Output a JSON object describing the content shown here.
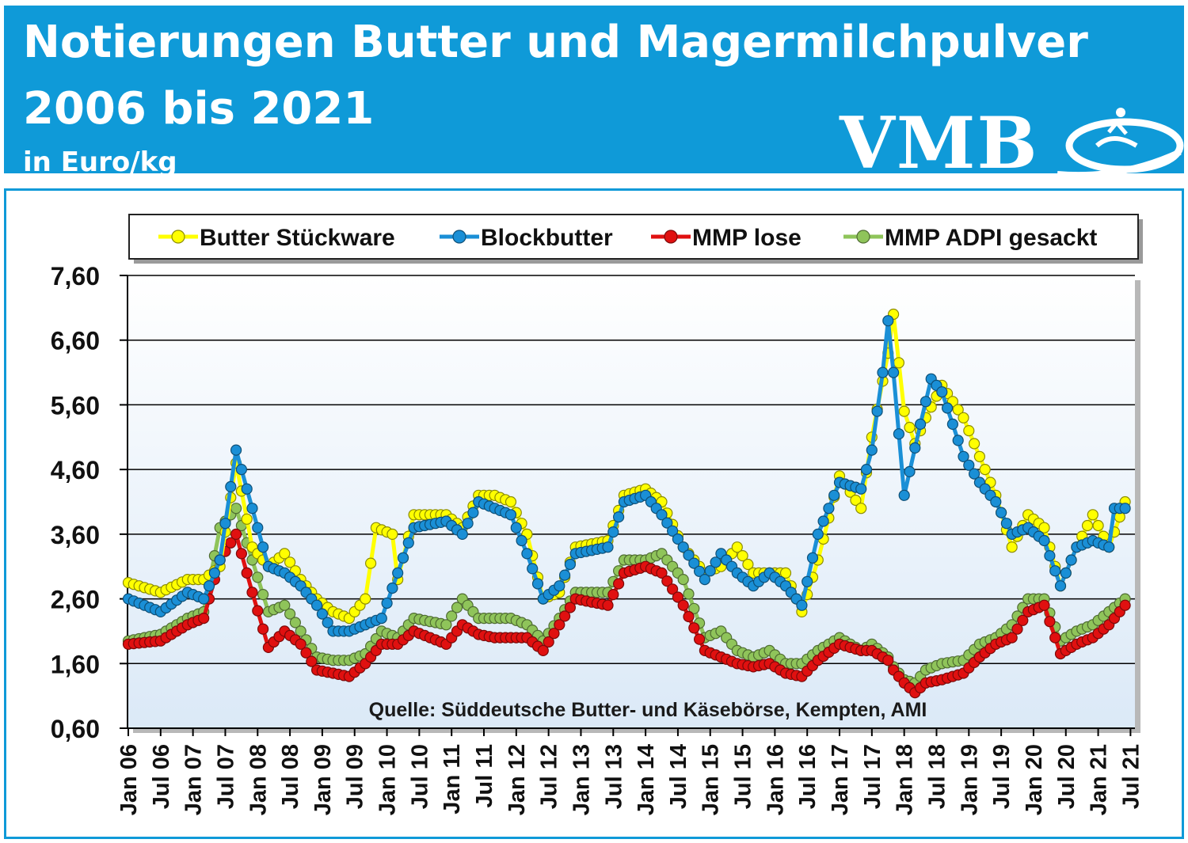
{
  "header": {
    "title_line1": "Notierungen Butter und Magermilchpulver",
    "title_line2": "2006 bis 2021",
    "unit": "in Euro/kg",
    "logo_text": "VMB",
    "colors": {
      "header_bg": "#0f9ad8",
      "text": "#ffffff"
    }
  },
  "chart_data": {
    "type": "line",
    "title": "Notierungen Butter und Magermilchpulver 2006 bis 2021",
    "ylabel": "in Euro/kg",
    "ylim": [
      0.6,
      7.6
    ],
    "yticks": [
      "0,60",
      "1,60",
      "2,60",
      "3,60",
      "4,60",
      "5,60",
      "6,60",
      "7,60"
    ],
    "yticks_values": [
      0.6,
      1.6,
      2.6,
      3.6,
      4.6,
      5.6,
      6.6,
      7.6
    ],
    "x_tick_labels": [
      "Jan 06",
      "Jul 06",
      "Jan 07",
      "Jul 07",
      "Jan 08",
      "Jul 08",
      "Jan 09",
      "Jul 09",
      "Jan 10",
      "Jul 10",
      "Jan 11",
      "Jul 11",
      "Jan 12",
      "Jul 12",
      "Jan 13",
      "Jul 13",
      "Jan 14",
      "Jul 14",
      "Jan 15",
      "Jul 15",
      "Jan 16",
      "Jul 16",
      "Jan 17",
      "Jul 17",
      "Jan 18",
      "Jul 18",
      "Jan 19",
      "Jul 19",
      "Jan 20",
      "Jul 20",
      "Jan 21",
      "Jul 21"
    ],
    "source": "Quelle: Süddeutsche Butter- und Käsebörse, Kempten, AMI",
    "grid": true,
    "legend_position": "top",
    "series": [
      {
        "name": "Butter Stückware",
        "color": "#ffff00",
        "anchors": [
          [
            "2006-01",
            2.85
          ],
          [
            "2006-07",
            2.7
          ],
          [
            "2006-12",
            2.9
          ],
          [
            "2007-03",
            2.9
          ],
          [
            "2007-06",
            3.1
          ],
          [
            "2007-09",
            4.7
          ],
          [
            "2007-12",
            3.4
          ],
          [
            "2008-03",
            3.1
          ],
          [
            "2008-06",
            3.3
          ],
          [
            "2008-09",
            2.9
          ],
          [
            "2008-12",
            2.6
          ],
          [
            "2009-03",
            2.4
          ],
          [
            "2009-06",
            2.3
          ],
          [
            "2009-09",
            2.6
          ],
          [
            "2009-11",
            3.7
          ],
          [
            "2010-02",
            3.6
          ],
          [
            "2010-03",
            2.9
          ],
          [
            "2010-06",
            3.9
          ],
          [
            "2010-12",
            3.9
          ],
          [
            "2011-03",
            3.7
          ],
          [
            "2011-06",
            4.2
          ],
          [
            "2011-09",
            4.2
          ],
          [
            "2011-12",
            4.1
          ],
          [
            "2012-03",
            3.6
          ],
          [
            "2012-06",
            2.6
          ],
          [
            "2012-09",
            2.7
          ],
          [
            "2012-12",
            3.4
          ],
          [
            "2013-06",
            3.5
          ],
          [
            "2013-09",
            4.2
          ],
          [
            "2014-01",
            4.3
          ],
          [
            "2014-04",
            4.1
          ],
          [
            "2014-08",
            3.4
          ],
          [
            "2014-12",
            3.0
          ],
          [
            "2015-03",
            3.1
          ],
          [
            "2015-06",
            3.4
          ],
          [
            "2015-09",
            3.0
          ],
          [
            "2015-12",
            3.0
          ],
          [
            "2016-03",
            3.0
          ],
          [
            "2016-06",
            2.4
          ],
          [
            "2016-09",
            3.2
          ],
          [
            "2017-01",
            4.5
          ],
          [
            "2017-05",
            4.0
          ],
          [
            "2017-07",
            5.1
          ],
          [
            "2017-10",
            6.4
          ],
          [
            "2017-11",
            7.0
          ],
          [
            "2018-01",
            5.5
          ],
          [
            "2018-03",
            5.0
          ],
          [
            "2018-05",
            5.4
          ],
          [
            "2018-08",
            5.9
          ],
          [
            "2018-12",
            5.4
          ],
          [
            "2019-03",
            4.8
          ],
          [
            "2019-06",
            4.2
          ],
          [
            "2019-09",
            3.4
          ],
          [
            "2019-12",
            3.9
          ],
          [
            "2020-03",
            3.7
          ],
          [
            "2020-06",
            2.8
          ],
          [
            "2020-09",
            3.4
          ],
          [
            "2020-12",
            3.9
          ],
          [
            "2021-03",
            3.4
          ],
          [
            "2021-06",
            4.1
          ]
        ]
      },
      {
        "name": "Blockbutter",
        "color": "#1a8fd6",
        "anchors": [
          [
            "2006-01",
            2.6
          ],
          [
            "2006-07",
            2.4
          ],
          [
            "2006-12",
            2.7
          ],
          [
            "2007-03",
            2.6
          ],
          [
            "2007-06",
            3.2
          ],
          [
            "2007-09",
            4.9
          ],
          [
            "2007-12",
            4.0
          ],
          [
            "2008-03",
            3.1
          ],
          [
            "2008-06",
            3.0
          ],
          [
            "2008-09",
            2.8
          ],
          [
            "2008-12",
            2.5
          ],
          [
            "2009-03",
            2.1
          ],
          [
            "2009-06",
            2.1
          ],
          [
            "2009-09",
            2.2
          ],
          [
            "2009-12",
            2.3
          ],
          [
            "2010-03",
            3.0
          ],
          [
            "2010-06",
            3.7
          ],
          [
            "2010-12",
            3.8
          ],
          [
            "2011-03",
            3.6
          ],
          [
            "2011-06",
            4.1
          ],
          [
            "2011-09",
            4.0
          ],
          [
            "2011-12",
            3.9
          ],
          [
            "2012-03",
            3.3
          ],
          [
            "2012-06",
            2.6
          ],
          [
            "2012-09",
            2.8
          ],
          [
            "2012-12",
            3.3
          ],
          [
            "2013-06",
            3.4
          ],
          [
            "2013-09",
            4.1
          ],
          [
            "2014-01",
            4.2
          ],
          [
            "2014-04",
            3.9
          ],
          [
            "2014-08",
            3.4
          ],
          [
            "2014-12",
            2.9
          ],
          [
            "2015-03",
            3.3
          ],
          [
            "2015-06",
            3.0
          ],
          [
            "2015-09",
            2.8
          ],
          [
            "2015-12",
            3.0
          ],
          [
            "2016-03",
            2.8
          ],
          [
            "2016-06",
            2.5
          ],
          [
            "2016-09",
            3.6
          ],
          [
            "2017-01",
            4.4
          ],
          [
            "2017-05",
            4.3
          ],
          [
            "2017-07",
            4.9
          ],
          [
            "2017-09",
            6.1
          ],
          [
            "2017-10",
            6.9
          ],
          [
            "2017-11",
            6.1
          ],
          [
            "2018-01",
            4.2
          ],
          [
            "2018-04",
            5.3
          ],
          [
            "2018-06",
            6.0
          ],
          [
            "2018-08",
            5.8
          ],
          [
            "2018-12",
            4.8
          ],
          [
            "2019-03",
            4.4
          ],
          [
            "2019-06",
            4.1
          ],
          [
            "2019-09",
            3.6
          ],
          [
            "2019-12",
            3.7
          ],
          [
            "2020-03",
            3.5
          ],
          [
            "2020-06",
            2.8
          ],
          [
            "2020-09",
            3.4
          ],
          [
            "2020-12",
            3.5
          ],
          [
            "2021-03",
            3.4
          ],
          [
            "2021-04",
            4.0
          ],
          [
            "2021-06",
            4.0
          ]
        ]
      },
      {
        "name": "MMP lose",
        "color": "#e01010",
        "anchors": [
          [
            "2006-01",
            1.9
          ],
          [
            "2006-07",
            1.95
          ],
          [
            "2006-12",
            2.2
          ],
          [
            "2007-03",
            2.3
          ],
          [
            "2007-06",
            3.2
          ],
          [
            "2007-09",
            3.6
          ],
          [
            "2007-12",
            2.7
          ],
          [
            "2008-03",
            1.85
          ],
          [
            "2008-06",
            2.1
          ],
          [
            "2008-09",
            1.9
          ],
          [
            "2008-12",
            1.5
          ],
          [
            "2009-03",
            1.45
          ],
          [
            "2009-06",
            1.4
          ],
          [
            "2009-09",
            1.6
          ],
          [
            "2009-12",
            1.9
          ],
          [
            "2010-03",
            1.9
          ],
          [
            "2010-06",
            2.1
          ],
          [
            "2010-12",
            1.9
          ],
          [
            "2011-03",
            2.2
          ],
          [
            "2011-06",
            2.05
          ],
          [
            "2011-09",
            2.0
          ],
          [
            "2011-12",
            2.0
          ],
          [
            "2012-03",
            2.0
          ],
          [
            "2012-06",
            1.8
          ],
          [
            "2012-09",
            2.2
          ],
          [
            "2012-12",
            2.6
          ],
          [
            "2013-06",
            2.5
          ],
          [
            "2013-09",
            3.0
          ],
          [
            "2014-01",
            3.1
          ],
          [
            "2014-04",
            3.0
          ],
          [
            "2014-08",
            2.5
          ],
          [
            "2014-12",
            1.8
          ],
          [
            "2015-03",
            1.7
          ],
          [
            "2015-06",
            1.6
          ],
          [
            "2015-09",
            1.55
          ],
          [
            "2015-12",
            1.6
          ],
          [
            "2016-03",
            1.45
          ],
          [
            "2016-06",
            1.4
          ],
          [
            "2016-09",
            1.65
          ],
          [
            "2017-01",
            1.9
          ],
          [
            "2017-05",
            1.8
          ],
          [
            "2017-07",
            1.8
          ],
          [
            "2017-10",
            1.65
          ],
          [
            "2017-11",
            1.5
          ],
          [
            "2018-01",
            1.3
          ],
          [
            "2018-03",
            1.15
          ],
          [
            "2018-05",
            1.3
          ],
          [
            "2018-08",
            1.35
          ],
          [
            "2018-12",
            1.45
          ],
          [
            "2019-03",
            1.7
          ],
          [
            "2019-06",
            1.9
          ],
          [
            "2019-09",
            2.0
          ],
          [
            "2019-12",
            2.4
          ],
          [
            "2020-03",
            2.5
          ],
          [
            "2020-06",
            1.75
          ],
          [
            "2020-09",
            1.9
          ],
          [
            "2020-12",
            2.0
          ],
          [
            "2021-03",
            2.2
          ],
          [
            "2021-06",
            2.5
          ]
        ]
      },
      {
        "name": "MMP ADPI gesackt",
        "color": "#8fc45a",
        "anchors": [
          [
            "2006-01",
            1.95
          ],
          [
            "2006-07",
            2.05
          ],
          [
            "2006-12",
            2.3
          ],
          [
            "2007-03",
            2.4
          ],
          [
            "2007-06",
            3.7
          ],
          [
            "2007-09",
            4.0
          ],
          [
            "2007-12",
            3.2
          ],
          [
            "2008-03",
            2.4
          ],
          [
            "2008-06",
            2.5
          ],
          [
            "2008-09",
            2.1
          ],
          [
            "2008-12",
            1.7
          ],
          [
            "2009-03",
            1.65
          ],
          [
            "2009-06",
            1.65
          ],
          [
            "2009-09",
            1.75
          ],
          [
            "2009-12",
            2.1
          ],
          [
            "2010-03",
            2.0
          ],
          [
            "2010-06",
            2.3
          ],
          [
            "2010-12",
            2.2
          ],
          [
            "2011-03",
            2.6
          ],
          [
            "2011-06",
            2.3
          ],
          [
            "2011-09",
            2.3
          ],
          [
            "2011-12",
            2.3
          ],
          [
            "2012-03",
            2.2
          ],
          [
            "2012-06",
            1.95
          ],
          [
            "2012-09",
            2.3
          ],
          [
            "2012-12",
            2.7
          ],
          [
            "2013-06",
            2.7
          ],
          [
            "2013-09",
            3.2
          ],
          [
            "2014-01",
            3.2
          ],
          [
            "2014-04",
            3.3
          ],
          [
            "2014-08",
            2.9
          ],
          [
            "2014-12",
            2.0
          ],
          [
            "2015-03",
            2.1
          ],
          [
            "2015-06",
            1.8
          ],
          [
            "2015-09",
            1.7
          ],
          [
            "2015-12",
            1.8
          ],
          [
            "2016-03",
            1.6
          ],
          [
            "2016-06",
            1.6
          ],
          [
            "2016-09",
            1.8
          ],
          [
            "2017-01",
            2.0
          ],
          [
            "2017-05",
            1.8
          ],
          [
            "2017-07",
            1.9
          ],
          [
            "2017-10",
            1.7
          ],
          [
            "2017-11",
            1.55
          ],
          [
            "2018-01",
            1.35
          ],
          [
            "2018-03",
            1.3
          ],
          [
            "2018-05",
            1.5
          ],
          [
            "2018-08",
            1.6
          ],
          [
            "2018-12",
            1.65
          ],
          [
            "2019-03",
            1.9
          ],
          [
            "2019-06",
            2.0
          ],
          [
            "2019-09",
            2.2
          ],
          [
            "2019-12",
            2.6
          ],
          [
            "2020-03",
            2.6
          ],
          [
            "2020-06",
            1.95
          ],
          [
            "2020-09",
            2.1
          ],
          [
            "2020-12",
            2.2
          ],
          [
            "2021-03",
            2.4
          ],
          [
            "2021-06",
            2.6
          ]
        ]
      }
    ]
  }
}
